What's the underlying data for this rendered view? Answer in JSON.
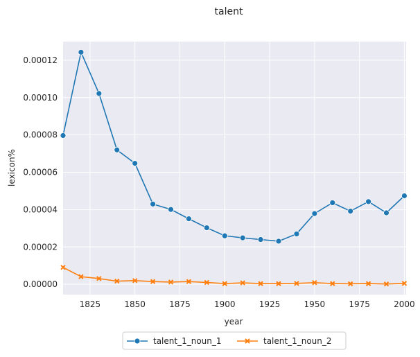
{
  "chart_data": {
    "type": "line",
    "title": "talent",
    "xlabel": "year",
    "ylabel": "lexicon%",
    "xlim": [
      1810,
      2001
    ],
    "ylim": [
      -5.5e-06,
      0.00013
    ],
    "x_ticks": [
      1825,
      1850,
      1875,
      1900,
      1925,
      1950,
      1975,
      2000
    ],
    "x_tick_labels": [
      "1825",
      "1850",
      "1875",
      "1900",
      "1925",
      "1950",
      "1975",
      "2000"
    ],
    "y_ticks": [
      0,
      2e-05,
      4e-05,
      6e-05,
      8e-05,
      0.0001,
      0.00012
    ],
    "y_tick_labels": [
      "0.00000",
      "0.00002",
      "0.00004",
      "0.00006",
      "0.00008",
      "0.00010",
      "0.00012"
    ],
    "grid": true,
    "legend_placement": "bottom-center",
    "x": [
      1810,
      1820,
      1830,
      1840,
      1850,
      1860,
      1870,
      1880,
      1890,
      1900,
      1910,
      1920,
      1930,
      1940,
      1950,
      1960,
      1970,
      1980,
      1990,
      2000
    ],
    "series": [
      {
        "name": "talent_1_noun_1",
        "color": "#1f77b4",
        "marker": "circle",
        "values": [
          7.97e-05,
          0.0001243,
          0.0001022,
          7.2e-05,
          6.48e-05,
          4.3e-05,
          4.01e-05,
          3.51e-05,
          3.03e-05,
          2.6e-05,
          2.49e-05,
          2.4e-05,
          2.31e-05,
          2.7e-05,
          3.79e-05,
          4.37e-05,
          3.92e-05,
          4.43e-05,
          3.83e-05,
          4.74e-05
        ]
      },
      {
        "name": "talent_1_noun_2",
        "color": "#ff7f0e",
        "marker": "x",
        "values": [
          9.1e-06,
          4.1e-06,
          3.1e-06,
          1.7e-06,
          2e-06,
          1.5e-06,
          1.2e-06,
          1.5e-06,
          1e-06,
          4e-07,
          8e-07,
          4e-07,
          4e-07,
          5e-07,
          9e-07,
          4e-07,
          3e-07,
          4e-07,
          2e-07,
          5e-07
        ]
      }
    ]
  },
  "colors": {
    "plot_background": "#eaeaf2",
    "grid": "#ffffff",
    "text": "#262626"
  }
}
